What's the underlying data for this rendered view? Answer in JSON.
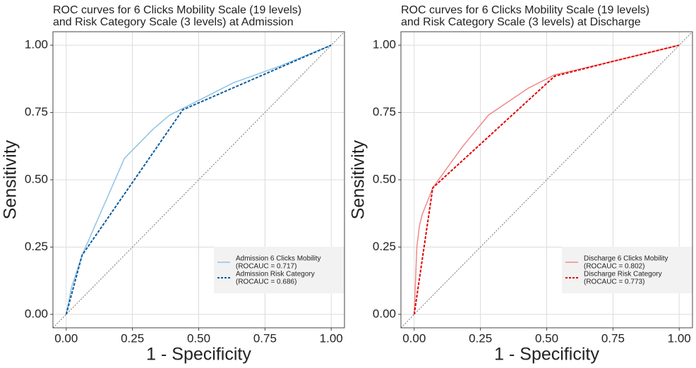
{
  "chart_data": [
    {
      "type": "line",
      "title": [
        "ROC curves for 6 Clicks Mobility Scale (19 levels)",
        "and Risk Category Scale (3 levels) at Admission"
      ],
      "x_label": "1 - Specificity",
      "y_label": "Sensitivity",
      "xlim": [
        -0.05,
        1.05
      ],
      "ylim": [
        -0.05,
        1.05
      ],
      "xticks": [
        {
          "value": 0,
          "label": "0.00"
        },
        {
          "value": 0.25,
          "label": "0.25"
        },
        {
          "value": 0.5,
          "label": "0.50"
        },
        {
          "value": 0.75,
          "label": "0.75"
        },
        {
          "value": 1,
          "label": "1.00"
        }
      ],
      "yticks": [
        {
          "value": 0,
          "label": "0.00"
        },
        {
          "value": 0.25,
          "label": "0.25"
        },
        {
          "value": 0.5,
          "label": "0.50"
        },
        {
          "value": 0.75,
          "label": "0.75"
        },
        {
          "value": 1,
          "label": "1.00"
        }
      ],
      "grid": true,
      "legend": "bottom-right",
      "series": [
        {
          "name": "Admission 6 Clicks Mobility",
          "legend_detail": "(ROCAUC = 0.717)",
          "color": "#8ec3e3",
          "dashed": false,
          "x": [
            0,
            0.02,
            0.06,
            0.22,
            0.33,
            0.39,
            0.45,
            0.63,
            0.8,
            1
          ],
          "values": [
            0,
            0.1,
            0.22,
            0.58,
            0.69,
            0.74,
            0.77,
            0.86,
            0.92,
            1
          ]
        },
        {
          "name": "Admission Risk Category",
          "legend_detail": "(ROCAUC = 0.686)",
          "color": "#0d5c9e",
          "dashed": true,
          "x": [
            0,
            0.06,
            0.44,
            1
          ],
          "values": [
            0,
            0.22,
            0.76,
            1
          ]
        }
      ]
    },
    {
      "type": "line",
      "title": [
        "ROC curves for 6 Clicks Mobility Scale (19 levels)",
        "and Risk Category Scale (3 levels) at Discharge"
      ],
      "x_label": "1 - Specificity",
      "y_label": "Sensitivity",
      "xlim": [
        -0.05,
        1.05
      ],
      "ylim": [
        -0.05,
        1.05
      ],
      "xticks": [
        {
          "value": 0,
          "label": "0.00"
        },
        {
          "value": 0.25,
          "label": "0.25"
        },
        {
          "value": 0.5,
          "label": "0.50"
        },
        {
          "value": 0.75,
          "label": "0.75"
        },
        {
          "value": 1,
          "label": "1.00"
        }
      ],
      "yticks": [
        {
          "value": 0,
          "label": "0.00"
        },
        {
          "value": 0.25,
          "label": "0.25"
        },
        {
          "value": 0.5,
          "label": "0.50"
        },
        {
          "value": 0.75,
          "label": "0.75"
        },
        {
          "value": 1,
          "label": "1.00"
        }
      ],
      "grid": true,
      "legend": "bottom-right",
      "series": [
        {
          "name": "Discharge 6 Clicks Mobility",
          "legend_detail": "(ROCAUC = 0.802)",
          "color": "#f08a8a",
          "dashed": false,
          "x": [
            0,
            0.01,
            0.02,
            0.03,
            0.07,
            0.18,
            0.28,
            0.43,
            0.5,
            0.53,
            0.62,
            0.75,
            1
          ],
          "values": [
            0,
            0.25,
            0.33,
            0.37,
            0.47,
            0.62,
            0.74,
            0.84,
            0.875,
            0.89,
            0.91,
            0.94,
            1
          ]
        },
        {
          "name": "Discharge Risk Category",
          "legend_detail": "(ROCAUC = 0.773)",
          "color": "#e00000",
          "dashed": true,
          "x": [
            0,
            0.07,
            0.53,
            0.75,
            1
          ],
          "values": [
            0,
            0.47,
            0.885,
            0.94,
            1
          ]
        }
      ]
    }
  ]
}
